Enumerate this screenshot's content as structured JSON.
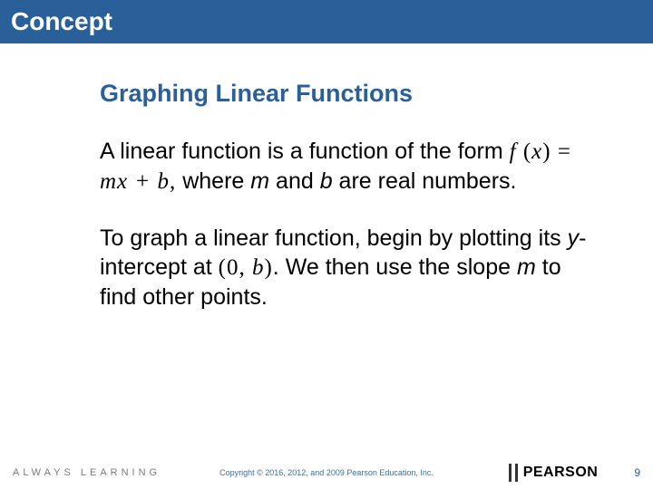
{
  "header": {
    "title": "Concept"
  },
  "content": {
    "title": "Graphing Linear Functions",
    "para1_part1": "A linear function is a function of the form  ",
    "formula1_f": "f ",
    "formula1_paren_open": "(",
    "formula1_x": "x",
    "formula1_paren_close": ") ",
    "formula1_eq": "= ",
    "formula1_rhs": "mx + b",
    "formula1_comma": ",",
    "para1_part2": "   where ",
    "m": "m",
    "para1_part3": " and ",
    "b": "b",
    "para1_part4": " are real numbers.",
    "para2_part1": "To graph a linear function, begin by plotting its ",
    "y": "y",
    "para2_part2": "-intercept at ",
    "coord_open": "(",
    "coord_0": "0,  ",
    "coord_b": "b",
    "coord_close": ")",
    "coord_period": ".",
    "para2_part3": " We then use the slope ",
    "para2_part4": " to find other points."
  },
  "footer": {
    "always_learning": "ALWAYS LEARNING",
    "copyright": "Copyright © 2016, 2012, and 2009 Pearson Education, Inc.",
    "pearson": "PEARSON",
    "page": "9"
  },
  "colors": {
    "header_bg": "#2a6099",
    "title_color": "#2a6099",
    "text_color": "#000000",
    "footer_gray": "#7a7a7a",
    "copyright_color": "#3b6fa0"
  }
}
